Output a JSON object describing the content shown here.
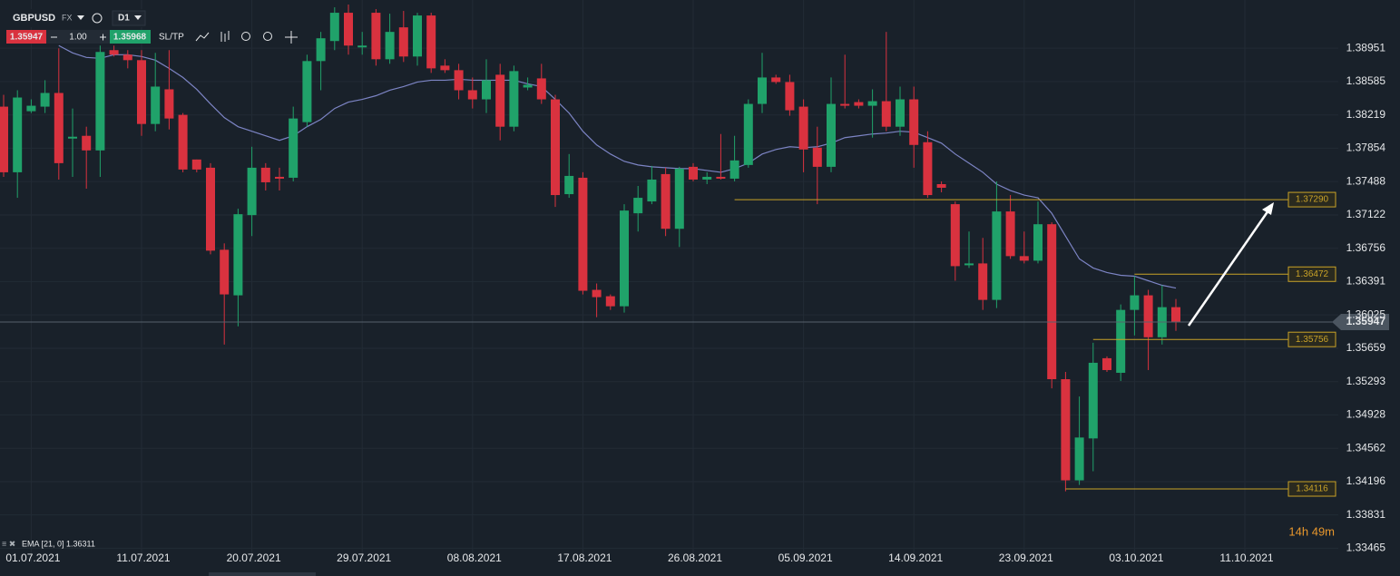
{
  "toolbar": {
    "symbol": "GBPUSD",
    "market": "FX",
    "timeframe": "D1",
    "bid": "1.35947",
    "quantity": "1.00",
    "ask": "1.35968",
    "sltp": "SL/TP"
  },
  "chart_data": {
    "type": "candlestick",
    "open": [
      1.3831,
      1.3759,
      1.3826,
      1.3831,
      1.3846,
      1.3796,
      1.3799,
      1.3783,
      1.3893,
      1.3888,
      1.3882,
      1.3812,
      1.385,
      1.3822,
      1.3773,
      1.3764,
      1.3674,
      1.3624,
      1.3712,
      1.3764,
      1.3754,
      1.3753,
      1.3814,
      1.3881,
      1.3903,
      1.3934,
      1.3896,
      1.3934,
      1.3883,
      1.3918,
      1.3886,
      1.3931,
      1.3876,
      1.3871,
      1.3849,
      1.3839,
      1.3866,
      1.3809,
      1.3852,
      1.3862,
      1.3839,
      1.3735,
      1.3753,
      1.363,
      1.3623,
      1.3612,
      1.3714,
      1.3727,
      1.3757,
      1.3697,
      1.3765,
      1.3751,
      1.3754,
      1.3752,
      1.3767,
      1.3834,
      1.3863,
      1.3858,
      1.3831,
      1.3786,
      1.3765,
      1.3834,
      1.3836,
      1.3832,
      1.3837,
      1.3809,
      1.3839,
      1.3792,
      1.3746,
      1.3724,
      1.3657,
      1.3659,
      1.3619,
      1.3716,
      1.3667,
      1.3662,
      1.3702,
      1.3532,
      1.3421,
      1.3467,
      1.3555,
      1.3539,
      1.3608,
      1.3624,
      1.3578,
      1.3611
    ],
    "high": [
      1.3844,
      1.3849,
      1.3839,
      1.386,
      1.3895,
      1.3829,
      1.3809,
      1.3898,
      1.3898,
      1.3893,
      1.3893,
      1.389,
      1.3893,
      1.3824,
      1.3773,
      1.3769,
      1.3681,
      1.3719,
      1.3787,
      1.3769,
      1.3764,
      1.3831,
      1.3888,
      1.3913,
      1.394,
      1.3943,
      1.3913,
      1.3938,
      1.3933,
      1.3936,
      1.3934,
      1.3934,
      1.3883,
      1.3878,
      1.3863,
      1.3883,
      1.3878,
      1.3876,
      1.3863,
      1.3878,
      1.3844,
      1.3779,
      1.3759,
      1.3637,
      1.3625,
      1.3724,
      1.3744,
      1.3766,
      1.3764,
      1.3765,
      1.3769,
      1.3759,
      1.3801,
      1.3799,
      1.3839,
      1.389,
      1.3866,
      1.3866,
      1.3839,
      1.3809,
      1.3863,
      1.3888,
      1.3839,
      1.385,
      1.3913,
      1.3853,
      1.3853,
      1.3804,
      1.3749,
      1.3727,
      1.3694,
      1.3687,
      1.3749,
      1.3734,
      1.3694,
      1.3727,
      1.3704,
      1.354,
      1.3513,
      1.3572,
      1.3557,
      1.3614,
      1.3645,
      1.363,
      1.3635,
      1.362
    ],
    "low": [
      1.3754,
      1.3731,
      1.3824,
      1.3824,
      1.3751,
      1.3754,
      1.3741,
      1.3754,
      1.3886,
      1.3873,
      1.3799,
      1.3804,
      1.3806,
      1.3759,
      1.3759,
      1.3669,
      1.357,
      1.359,
      1.3689,
      1.3739,
      1.3739,
      1.3749,
      1.3809,
      1.3849,
      1.3893,
      1.3888,
      1.3888,
      1.3876,
      1.3878,
      1.388,
      1.3876,
      1.3868,
      1.3868,
      1.3839,
      1.3829,
      1.3824,
      1.3794,
      1.3804,
      1.3849,
      1.3834,
      1.3721,
      1.3731,
      1.3625,
      1.36,
      1.3608,
      1.3605,
      1.3694,
      1.3724,
      1.3689,
      1.3677,
      1.3749,
      1.3746,
      1.3751,
      1.3749,
      1.3764,
      1.3824,
      1.3856,
      1.3821,
      1.3759,
      1.3724,
      1.3759,
      1.3829,
      1.3829,
      1.3797,
      1.3804,
      1.3799,
      1.3764,
      1.3731,
      1.3737,
      1.364,
      1.3654,
      1.3608,
      1.361,
      1.3664,
      1.3659,
      1.3659,
      1.3522,
      1.3409,
      1.3416,
      1.3431,
      1.354,
      1.353,
      1.358,
      1.3542,
      1.357,
      1.3585
    ],
    "close": [
      1.3759,
      1.3841,
      1.3832,
      1.3846,
      1.3769,
      1.3798,
      1.3783,
      1.3891,
      1.3888,
      1.3882,
      1.3812,
      1.3853,
      1.3818,
      1.3762,
      1.3762,
      1.3673,
      1.3625,
      1.3713,
      1.3764,
      1.3748,
      1.3752,
      1.3818,
      1.3881,
      1.3906,
      1.3934,
      1.3898,
      1.3898,
      1.3883,
      1.3913,
      1.3886,
      1.3931,
      1.3873,
      1.3871,
      1.3849,
      1.3839,
      1.386,
      1.3809,
      1.387,
      1.3855,
      1.3839,
      1.3734,
      1.3755,
      1.3629,
      1.3622,
      1.3612,
      1.3717,
      1.3731,
      1.3751,
      1.3697,
      1.3763,
      1.3751,
      1.3754,
      1.3752,
      1.3772,
      1.3834,
      1.3863,
      1.3858,
      1.3827,
      1.3784,
      1.3765,
      1.3834,
      1.3832,
      1.3832,
      1.3837,
      1.3809,
      1.3839,
      1.3789,
      1.3734,
      1.3742,
      1.3656,
      1.3659,
      1.3619,
      1.3716,
      1.3667,
      1.3662,
      1.3702,
      1.3532,
      1.3421,
      1.3468,
      1.355,
      1.3542,
      1.3608,
      1.3624,
      1.3578,
      1.3611,
      1.3595
    ],
    "up_color": "#20a26a",
    "down_color": "#d9323f",
    "overlay": {
      "name": "EMA [21, 0] 1.36311",
      "color": "#7c84c4",
      "values": [
        null,
        null,
        null,
        null,
        1.3898,
        1.389,
        1.3885,
        1.3884,
        1.3888,
        1.3888,
        1.3886,
        1.3882,
        1.3873,
        1.3863,
        1.385,
        1.3834,
        1.3819,
        1.3809,
        1.3804,
        1.3799,
        1.3794,
        1.3799,
        1.3809,
        1.3817,
        1.3829,
        1.3836,
        1.3839,
        1.3843,
        1.3849,
        1.3853,
        1.3858,
        1.386,
        1.386,
        1.3861,
        1.386,
        1.386,
        1.386,
        1.386,
        1.3856,
        1.3853,
        1.3839,
        1.3824,
        1.3804,
        1.3789,
        1.3779,
        1.3771,
        1.3767,
        1.3765,
        1.3764,
        1.3763,
        1.3763,
        1.3761,
        1.3759,
        1.3763,
        1.3769,
        1.3779,
        1.3784,
        1.3787,
        1.3786,
        1.3787,
        1.3791,
        1.3797,
        1.3799,
        1.3801,
        1.3802,
        1.3804,
        1.3803,
        1.3797,
        1.3791,
        1.3779,
        1.3769,
        1.3759,
        1.3746,
        1.3739,
        1.3734,
        1.3731,
        1.3714,
        1.3689,
        1.3664,
        1.3654,
        1.3649,
        1.3646,
        1.3645,
        1.364,
        1.3635,
        1.3632
      ]
    },
    "ylim": [
      1.3331,
      1.3948
    ],
    "yticks": [
      1.38951,
      1.38585,
      1.38219,
      1.37854,
      1.37488,
      1.37122,
      1.36756,
      1.36391,
      1.36025,
      1.35659,
      1.35293,
      1.34928,
      1.34562,
      1.34196,
      1.33831,
      1.33465
    ],
    "xticks": [
      "01.07.2021",
      "11.07.2021",
      "20.07.2021",
      "29.07.2021",
      "08.08.2021",
      "17.08.2021",
      "26.08.2021",
      "05.09.2021",
      "14.09.2021",
      "23.09.2021",
      "03.10.2021",
      "11.10.2021"
    ],
    "grid": true,
    "current_price": 1.35947,
    "levels": [
      {
        "value": 1.3729,
        "label": "1.37290"
      },
      {
        "value": 1.36472,
        "label": "1.36472"
      },
      {
        "value": 1.35756,
        "label": "1.35756"
      },
      {
        "value": 1.34116,
        "label": "1.34116"
      }
    ],
    "level_color": "#c9a227",
    "countdown": "14h 49m"
  }
}
